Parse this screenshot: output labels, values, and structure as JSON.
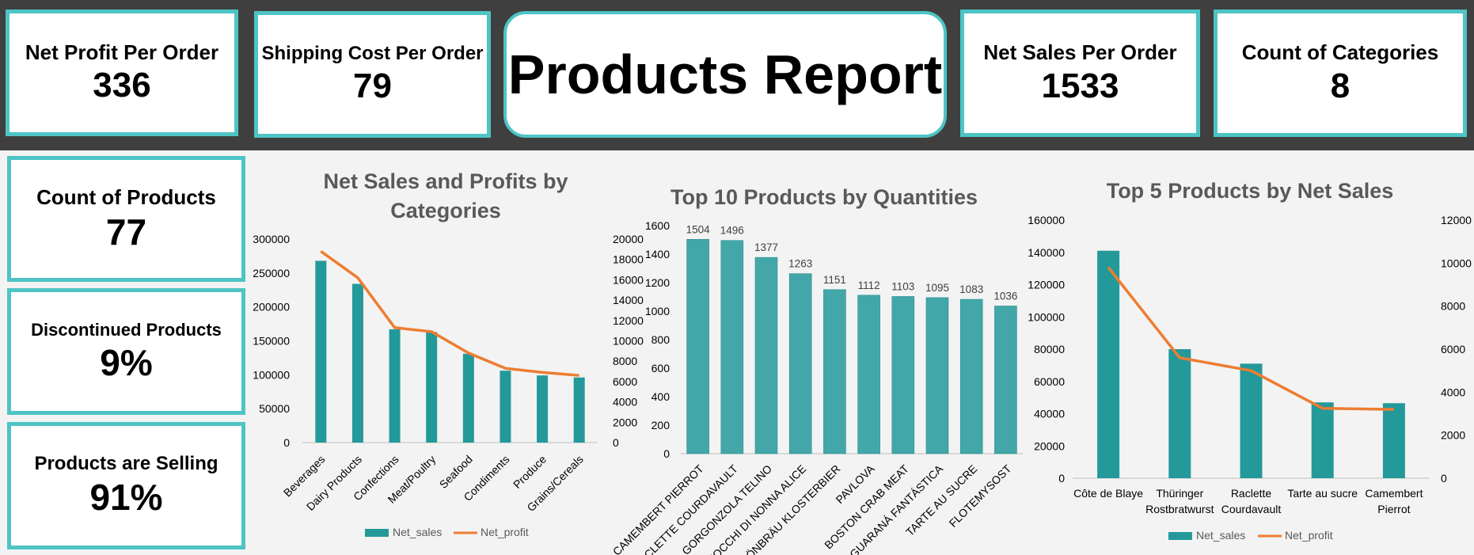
{
  "report_title": "Products Report",
  "kpis": {
    "net_profit_per_order": {
      "label": "Net Profit Per Order",
      "value": "336"
    },
    "shipping_cost_per_order": {
      "label": "Shipping Cost Per Order",
      "value": "79"
    },
    "net_sales_per_order": {
      "label": "Net Sales Per Order",
      "value": "1533"
    },
    "count_of_categories": {
      "label": "Count of Categories",
      "value": "8"
    },
    "count_of_products": {
      "label": "Count of Products",
      "value": "77"
    },
    "discontinued_products": {
      "label": "Discontinued Products",
      "value": "9%"
    },
    "products_selling": {
      "label": "Products are Selling",
      "value": "91%"
    }
  },
  "colors": {
    "accent": "#4ec4c4",
    "bar": "#23999a",
    "bar2": "#43a7a9",
    "line": "#ed7d31",
    "band": "#3f3f3f"
  },
  "chart_data": [
    {
      "type": "bar",
      "title": "Net Sales and Profits by Categories",
      "categories": [
        "Beverages",
        "Dairy Products",
        "Confections",
        "Meat/Poultry",
        "Seafood",
        "Condiments",
        "Produce",
        "Grains/Cereals"
      ],
      "series": [
        {
          "name": "Net_sales",
          "type": "bar",
          "axis": "left",
          "values": [
            268000,
            234000,
            167000,
            163000,
            131000,
            106000,
            99000,
            96000
          ]
        },
        {
          "name": "Net_profit",
          "type": "line",
          "axis": "right",
          "values": [
            18800,
            16200,
            11300,
            10900,
            8800,
            7300,
            6900,
            6600
          ]
        }
      ],
      "y_left_ticks": [
        "0",
        "50000",
        "100000",
        "150000",
        "200000",
        "250000",
        "300000"
      ],
      "y_right_ticks": [
        "0",
        "2000",
        "4000",
        "6000",
        "8000",
        "10000",
        "12000",
        "14000",
        "16000",
        "18000",
        "20000"
      ],
      "ylim_left": [
        0,
        300000
      ],
      "ylim_right": [
        0,
        20000
      ],
      "legend": "bottom"
    },
    {
      "type": "bar",
      "title": "Top 10 Products by Quantities",
      "categories": [
        "CAMEMBERT PIERROT",
        "RACLETTE COURDAVAULT",
        "GORGONZOLA TELINO",
        "GNOCCHI DI NONNA ALICE",
        "RHÖNBRÄU KLOSTERBIER",
        "PAVLOVA",
        "BOSTON CRAB MEAT",
        "GUARANÁ FANTÁSTICA",
        "TARTE AU SUCRE",
        "FLOTEMYSOST"
      ],
      "values": [
        1504,
        1496,
        1377,
        1263,
        1151,
        1112,
        1103,
        1095,
        1083,
        1036
      ],
      "data_labels": [
        "1504",
        "1496",
        "1377",
        "1263",
        "1151",
        "1112",
        "1103",
        "1095",
        "1083",
        "1036"
      ],
      "y_ticks": [
        "0",
        "200",
        "400",
        "600",
        "800",
        "1000",
        "1200",
        "1400",
        "1600"
      ],
      "ylim": [
        0,
        1600
      ]
    },
    {
      "type": "bar",
      "title": "Top 5 Products by Net Sales",
      "categories": [
        [
          "Côte de Blaye"
        ],
        [
          "Thüringer",
          "Rostbratwurst"
        ],
        [
          "Raclette",
          "Courdavault"
        ],
        [
          "Tarte au sucre"
        ],
        [
          "Camembert",
          "Pierrot"
        ]
      ],
      "series": [
        {
          "name": "Net_sales",
          "type": "bar",
          "axis": "left",
          "values": [
            141000,
            80000,
            71000,
            47000,
            46500
          ]
        },
        {
          "name": "Net_profit",
          "type": "line",
          "axis": "right",
          "values": [
            9800,
            5600,
            5000,
            3250,
            3200
          ]
        }
      ],
      "y_left_ticks": [
        "0",
        "20000",
        "40000",
        "60000",
        "80000",
        "100000",
        "120000",
        "140000",
        "160000"
      ],
      "y_right_ticks": [
        "0",
        "2000",
        "4000",
        "6000",
        "8000",
        "10000",
        "12000"
      ],
      "ylim_left": [
        0,
        160000
      ],
      "ylim_right": [
        0,
        12000
      ],
      "legend": "bottom"
    }
  ]
}
